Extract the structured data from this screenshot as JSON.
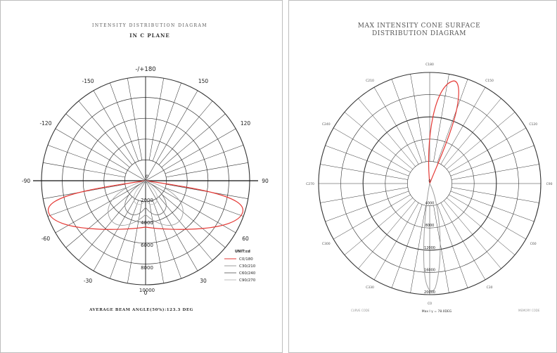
{
  "left": {
    "title": "INTENSITY DISTRIBUTION DIAGRAM",
    "subtitle": "IN C PLANE",
    "angles": [
      {
        "deg": 180,
        "label": "-/+180"
      },
      {
        "deg": 150,
        "label": "150"
      },
      {
        "deg": -150,
        "label": "-150"
      },
      {
        "deg": 120,
        "label": "120"
      },
      {
        "deg": -120,
        "label": "-120"
      },
      {
        "deg": 90,
        "label": "90"
      },
      {
        "deg": -90,
        "label": "-90"
      },
      {
        "deg": 60,
        "label": "60"
      },
      {
        "deg": -60,
        "label": "-60"
      },
      {
        "deg": 30,
        "label": "30"
      },
      {
        "deg": -30,
        "label": "-30"
      },
      {
        "deg": 0,
        "label": "0"
      }
    ],
    "ring_labels": [
      "0",
      "2000",
      "4000",
      "6000",
      "8000",
      "10000"
    ],
    "legend": {
      "title": "UNIT:cd",
      "items": [
        {
          "label": "C0/180",
          "color": "#e53935"
        },
        {
          "label": "C30/210",
          "color": "#9e9e9e"
        },
        {
          "label": "C60/240",
          "color": "#757575"
        },
        {
          "label": "C90/270",
          "color": "#bdbdbd"
        }
      ]
    },
    "caption": "AVERAGE BEAM ANGLE(50%):123.3 DEG"
  },
  "right": {
    "title_line1": "MAX INTENSITY CONE SURFACE",
    "title_line2": "DISTRIBUTION DIAGRAM",
    "c_labels": [
      "C180",
      "C150",
      "C120",
      "C90",
      "C60",
      "C30",
      "C0",
      "C330",
      "C300",
      "C270",
      "C240",
      "C210"
    ],
    "ring_labels": [
      "0",
      "4000",
      "8000",
      "12000",
      "16000",
      "20000"
    ],
    "footer_left": "CURVE CODE",
    "footer_center": "Max I γ = 78.0DEG",
    "footer_right": "MEMORY CODE"
  },
  "colors": {
    "red": "#e53935",
    "grid": "#333333",
    "gray": "#9e9e9e"
  }
}
